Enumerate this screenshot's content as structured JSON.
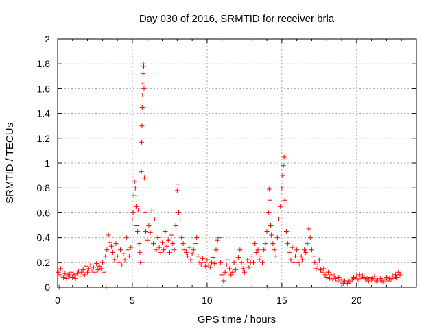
{
  "chart_data": {
    "type": "scatter",
    "title": "Day 030 of 2016, SRMTID for receiver brla",
    "xlabel": "GPS time / hours",
    "ylabel": "SRMTID / TECUs",
    "xlim": [
      0,
      24
    ],
    "ylim": [
      0,
      2
    ],
    "x_ticks": [
      0,
      5,
      10,
      15,
      20
    ],
    "x_tick_labels": [
      "0",
      "5",
      "10",
      "15",
      "20"
    ],
    "y_ticks": [
      0,
      0.2,
      0.4,
      0.6,
      0.8,
      1.0,
      1.2,
      1.4,
      1.6,
      1.8,
      2.0
    ],
    "y_tick_labels": [
      "0",
      "0.2",
      "0.4",
      "0.6",
      "0.8",
      "1",
      "1.2",
      "1.4",
      "1.6",
      "1.8",
      "2"
    ],
    "grid": true,
    "marker": "+",
    "color": "#ff0000",
    "series": [
      {
        "name": "brla",
        "points": [
          [
            0.05,
            0.12
          ],
          [
            0.1,
            0.0
          ],
          [
            0.15,
            0.1
          ],
          [
            0.2,
            0.15
          ],
          [
            0.3,
            0.09
          ],
          [
            0.4,
            0.08
          ],
          [
            0.5,
            0.11
          ],
          [
            0.6,
            0.07
          ],
          [
            0.7,
            0.1
          ],
          [
            0.8,
            0.09
          ],
          [
            0.9,
            0.12
          ],
          [
            1.0,
            0.08
          ],
          [
            1.1,
            0.1
          ],
          [
            1.2,
            0.07
          ],
          [
            1.3,
            0.11
          ],
          [
            1.4,
            0.13
          ],
          [
            1.5,
            0.09
          ],
          [
            1.6,
            0.12
          ],
          [
            1.7,
            0.14
          ],
          [
            1.8,
            0.1
          ],
          [
            1.9,
            0.17
          ],
          [
            2.0,
            0.12
          ],
          [
            2.1,
            0.15
          ],
          [
            2.2,
            0.18
          ],
          [
            2.3,
            0.13
          ],
          [
            2.4,
            0.16
          ],
          [
            2.5,
            0.12
          ],
          [
            2.6,
            0.19
          ],
          [
            2.7,
            0.14
          ],
          [
            2.8,
            0.17
          ],
          [
            2.9,
            0.15
          ],
          [
            3.0,
            0.2
          ],
          [
            3.1,
            0.12
          ],
          [
            3.2,
            0.25
          ],
          [
            3.25,
            0.0
          ],
          [
            3.3,
            0.3
          ],
          [
            3.4,
            0.42
          ],
          [
            3.5,
            0.36
          ],
          [
            3.6,
            0.33
          ],
          [
            3.7,
            0.28
          ],
          [
            3.8,
            0.22
          ],
          [
            3.9,
            0.35
          ],
          [
            4.0,
            0.25
          ],
          [
            4.1,
            0.2
          ],
          [
            4.2,
            0.3
          ],
          [
            4.3,
            0.18
          ],
          [
            4.4,
            0.27
          ],
          [
            4.5,
            0.22
          ],
          [
            4.6,
            0.4
          ],
          [
            4.7,
            0.3
          ],
          [
            4.8,
            0.25
          ],
          [
            4.9,
            0.32
          ],
          [
            5.0,
            0.55
          ],
          [
            5.05,
            0.6
          ],
          [
            5.1,
            0.74
          ],
          [
            5.15,
            0.85
          ],
          [
            5.2,
            0.8
          ],
          [
            5.25,
            0.65
          ],
          [
            5.3,
            0.5
          ],
          [
            5.35,
            0.45
          ],
          [
            5.4,
            0.62
          ],
          [
            5.45,
            0.35
          ],
          [
            5.5,
            0.28
          ],
          [
            5.55,
            0.2
          ],
          [
            5.6,
            0.93
          ],
          [
            5.62,
            1.17
          ],
          [
            5.64,
            1.3
          ],
          [
            5.66,
            1.45
          ],
          [
            5.68,
            1.55
          ],
          [
            5.7,
            1.64
          ],
          [
            5.72,
            1.72
          ],
          [
            5.74,
            1.8
          ],
          [
            5.76,
            1.78
          ],
          [
            5.78,
            1.6
          ],
          [
            5.8,
            0.88
          ],
          [
            5.85,
            0.6
          ],
          [
            5.9,
            0.45
          ],
          [
            6.0,
            0.38
          ],
          [
            6.1,
            0.5
          ],
          [
            6.2,
            0.44
          ],
          [
            6.3,
            0.62
          ],
          [
            6.4,
            0.35
          ],
          [
            6.5,
            0.55
          ],
          [
            6.6,
            0.3
          ],
          [
            6.7,
            0.4
          ],
          [
            6.8,
            0.32
          ],
          [
            6.9,
            0.28
          ],
          [
            7.0,
            0.36
          ],
          [
            7.1,
            0.3
          ],
          [
            7.2,
            0.45
          ],
          [
            7.3,
            0.33
          ],
          [
            7.4,
            0.38
          ],
          [
            7.5,
            0.28
          ],
          [
            7.6,
            0.42
          ],
          [
            7.7,
            0.35
          ],
          [
            7.8,
            0.3
          ],
          [
            7.9,
            0.5
          ],
          [
            8.0,
            0.78
          ],
          [
            8.05,
            0.83
          ],
          [
            8.1,
            0.6
          ],
          [
            8.2,
            0.55
          ],
          [
            8.3,
            0.4
          ],
          [
            8.4,
            0.35
          ],
          [
            8.5,
            0.3
          ],
          [
            8.6,
            0.28
          ],
          [
            8.7,
            0.25
          ],
          [
            8.8,
            0.32
          ],
          [
            8.9,
            0.22
          ],
          [
            9.0,
            0.27
          ],
          [
            9.1,
            0.3
          ],
          [
            9.2,
            0.35
          ],
          [
            9.3,
            0.4
          ],
          [
            9.4,
            0.25
          ],
          [
            9.5,
            0.2
          ],
          [
            9.6,
            0.18
          ],
          [
            9.7,
            0.23
          ],
          [
            9.8,
            0.2
          ],
          [
            9.9,
            0.17
          ],
          [
            10.0,
            0.22
          ],
          [
            10.1,
            0.18
          ],
          [
            10.2,
            0.16
          ],
          [
            10.3,
            0.2
          ],
          [
            10.4,
            0.24
          ],
          [
            10.5,
            0.19
          ],
          [
            10.6,
            0.3
          ],
          [
            10.7,
            0.38
          ],
          [
            10.8,
            0.4
          ],
          [
            10.9,
            0.2
          ],
          [
            11.0,
            0.1
          ],
          [
            11.1,
            0.05
          ],
          [
            11.2,
            0.12
          ],
          [
            11.3,
            0.18
          ],
          [
            11.4,
            0.22
          ],
          [
            11.5,
            0.15
          ],
          [
            11.6,
            0.1
          ],
          [
            11.7,
            0.12
          ],
          [
            11.8,
            0.2
          ],
          [
            11.9,
            0.14
          ],
          [
            12.0,
            0.18
          ],
          [
            12.1,
            0.24
          ],
          [
            12.2,
            0.3
          ],
          [
            12.3,
            0.2
          ],
          [
            12.4,
            0.15
          ],
          [
            12.5,
            0.12
          ],
          [
            12.6,
            0.18
          ],
          [
            12.7,
            0.22
          ],
          [
            12.8,
            0.16
          ],
          [
            12.9,
            0.2
          ],
          [
            13.0,
            0.25
          ],
          [
            13.1,
            0.2
          ],
          [
            13.2,
            0.35
          ],
          [
            13.3,
            0.28
          ],
          [
            13.4,
            0.3
          ],
          [
            13.5,
            0.22
          ],
          [
            13.6,
            0.25
          ],
          [
            13.7,
            0.2
          ],
          [
            13.8,
            0.3
          ],
          [
            13.9,
            0.35
          ],
          [
            14.0,
            0.45
          ],
          [
            14.05,
            0.0
          ],
          [
            14.1,
            0.6
          ],
          [
            14.15,
            0.79
          ],
          [
            14.2,
            0.7
          ],
          [
            14.25,
            0.5
          ],
          [
            14.3,
            0.42
          ],
          [
            14.4,
            0.35
          ],
          [
            14.5,
            0.3
          ],
          [
            14.6,
            0.25
          ],
          [
            14.7,
            0.4
          ],
          [
            14.8,
            0.55
          ],
          [
            14.9,
            0.65
          ],
          [
            15.0,
            0.8
          ],
          [
            15.05,
            0.9
          ],
          [
            15.1,
            0.98
          ],
          [
            15.15,
            1.05
          ],
          [
            15.2,
            0.7
          ],
          [
            15.3,
            0.45
          ],
          [
            15.4,
            0.35
          ],
          [
            15.5,
            0.28
          ],
          [
            15.6,
            0.22
          ],
          [
            15.7,
            0.32
          ],
          [
            15.8,
            0.2
          ],
          [
            15.9,
            0.25
          ],
          [
            16.0,
            0.3
          ],
          [
            16.1,
            0.2
          ],
          [
            16.2,
            0.18
          ],
          [
            16.3,
            0.25
          ],
          [
            16.4,
            0.22
          ],
          [
            16.5,
            0.3
          ],
          [
            16.6,
            0.28
          ],
          [
            16.7,
            0.35
          ],
          [
            16.8,
            0.47
          ],
          [
            16.9,
            0.4
          ],
          [
            17.0,
            0.3
          ],
          [
            17.1,
            0.25
          ],
          [
            17.2,
            0.2
          ],
          [
            17.3,
            0.15
          ],
          [
            17.4,
            0.18
          ],
          [
            17.5,
            0.22
          ],
          [
            17.6,
            0.14
          ],
          [
            17.7,
            0.12
          ],
          [
            17.8,
            0.15
          ],
          [
            17.9,
            0.1
          ],
          [
            18.0,
            0.08
          ],
          [
            18.1,
            0.12
          ],
          [
            18.2,
            0.07
          ],
          [
            18.3,
            0.1
          ],
          [
            18.4,
            0.06
          ],
          [
            18.5,
            0.09
          ],
          [
            18.6,
            0.07
          ],
          [
            18.7,
            0.05
          ],
          [
            18.8,
            0.08
          ],
          [
            18.9,
            0.04
          ],
          [
            19.0,
            0.06
          ],
          [
            19.1,
            0.03
          ],
          [
            19.2,
            0.05
          ],
          [
            19.3,
            0.04
          ],
          [
            19.4,
            0.03
          ],
          [
            19.5,
            0.05
          ],
          [
            19.6,
            0.04
          ],
          [
            19.7,
            0.06
          ],
          [
            19.8,
            0.08
          ],
          [
            19.9,
            0.07
          ],
          [
            20.0,
            0.09
          ],
          [
            20.1,
            0.06
          ],
          [
            20.2,
            0.1
          ],
          [
            20.3,
            0.07
          ],
          [
            20.4,
            0.09
          ],
          [
            20.5,
            0.08
          ],
          [
            20.6,
            0.06
          ],
          [
            20.7,
            0.07
          ],
          [
            20.8,
            0.05
          ],
          [
            20.9,
            0.08
          ],
          [
            21.0,
            0.06
          ],
          [
            21.1,
            0.07
          ],
          [
            21.2,
            0.09
          ],
          [
            21.3,
            0.05
          ],
          [
            21.4,
            0.06
          ],
          [
            21.5,
            0.04
          ],
          [
            21.6,
            0.07
          ],
          [
            21.7,
            0.05
          ],
          [
            21.8,
            0.04
          ],
          [
            21.9,
            0.06
          ],
          [
            22.0,
            0.08
          ],
          [
            22.1,
            0.05
          ],
          [
            22.2,
            0.07
          ],
          [
            22.3,
            0.06
          ],
          [
            22.4,
            0.09
          ],
          [
            22.5,
            0.07
          ],
          [
            22.6,
            0.1
          ],
          [
            22.7,
            0.08
          ],
          [
            22.8,
            0.12
          ],
          [
            22.9,
            0.1
          ]
        ]
      }
    ]
  }
}
